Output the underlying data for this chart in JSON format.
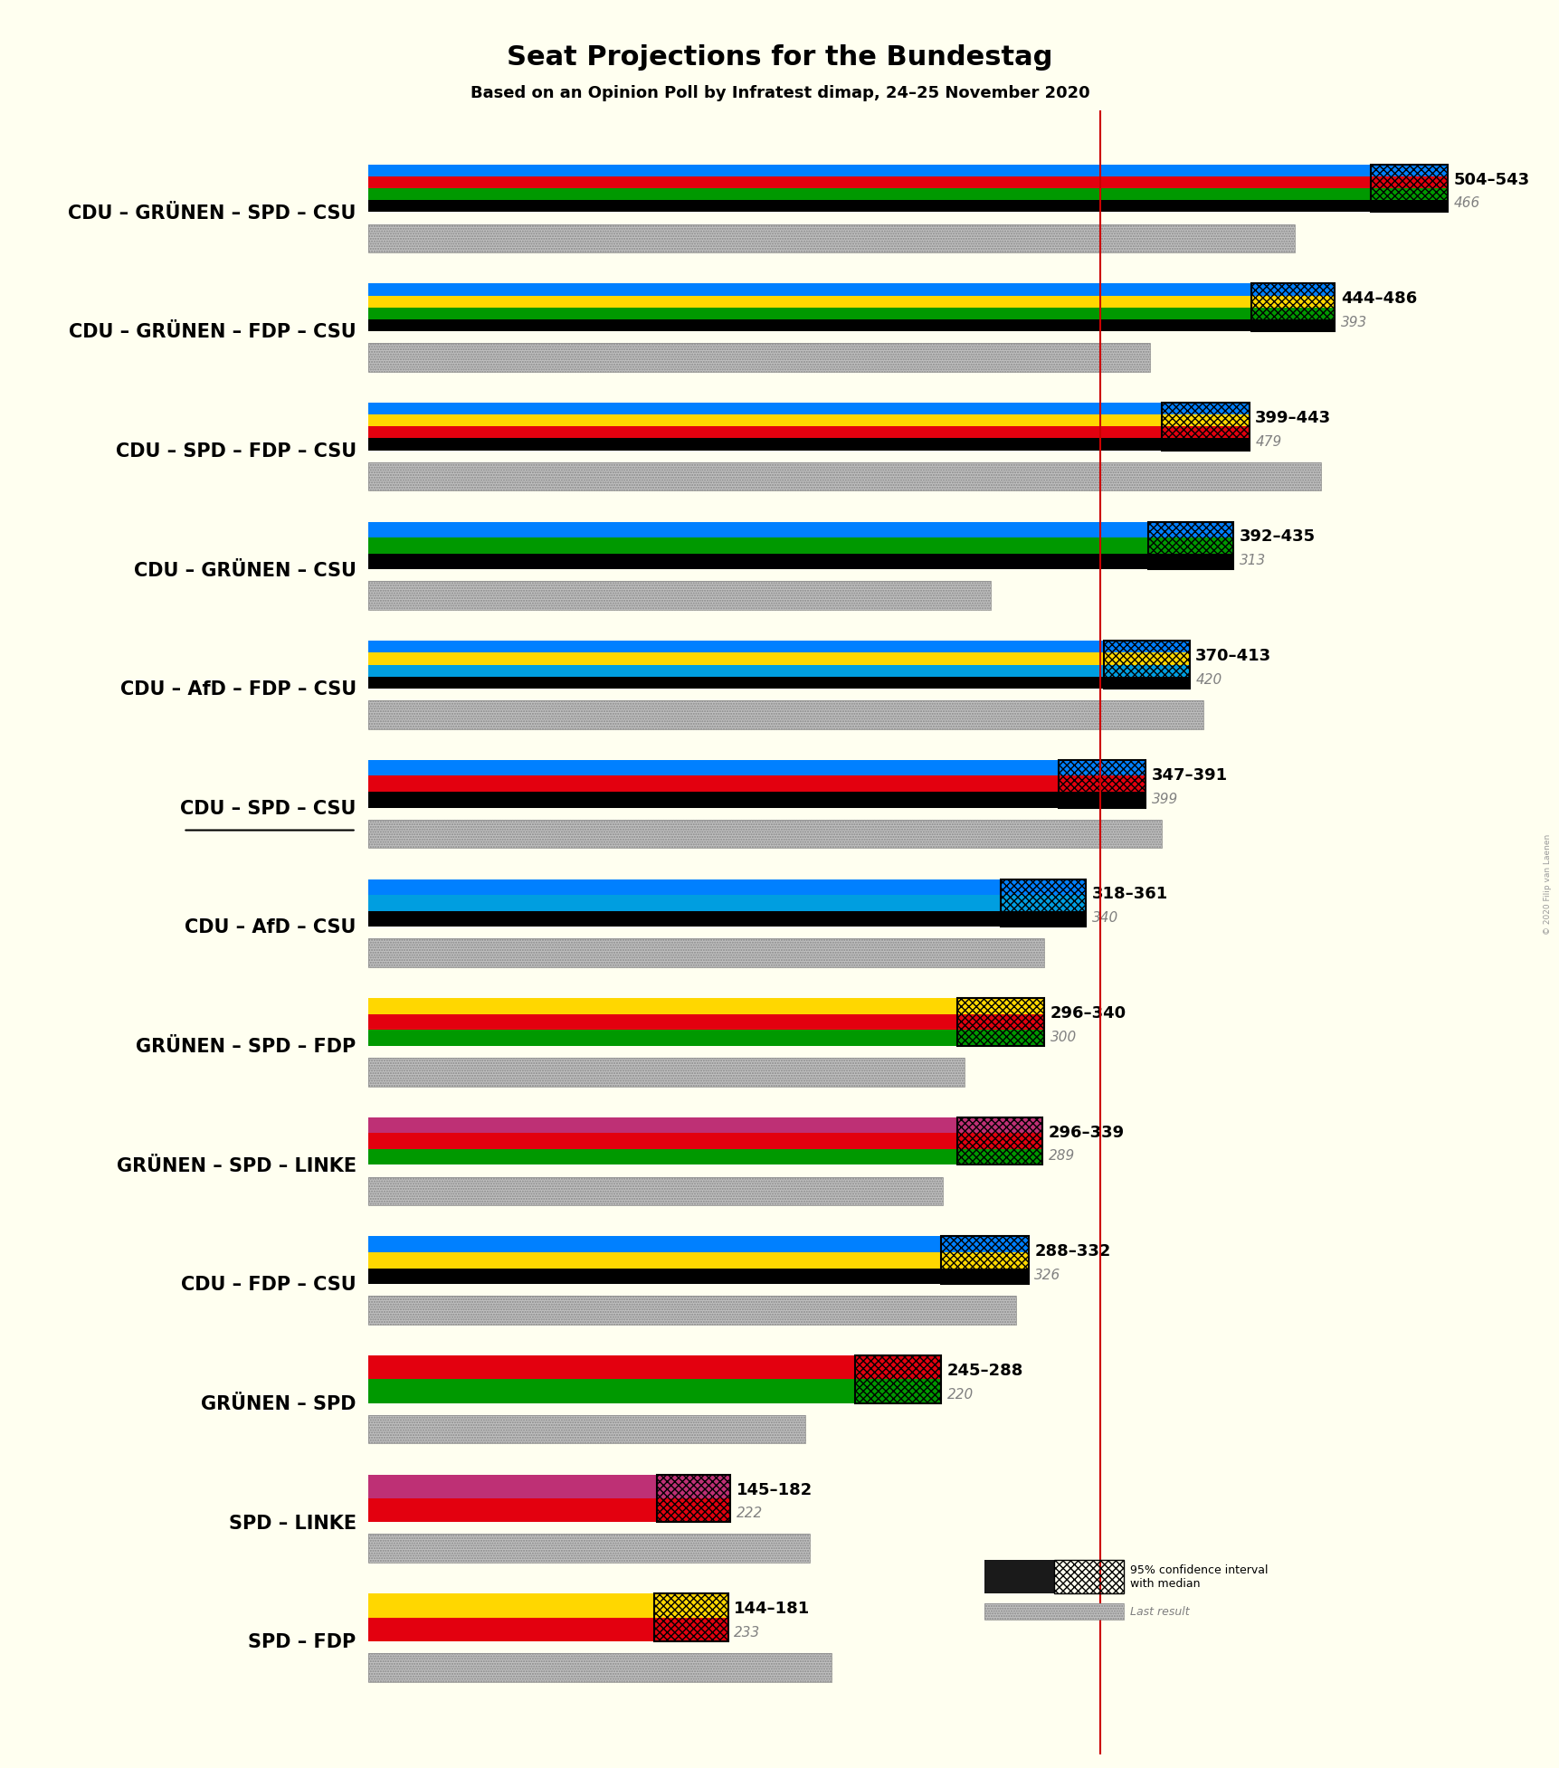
{
  "title": "Seat Projections for the Bundestag",
  "subtitle": "Based on an Opinion Poll by Infratest dimap, 24–25 November 2020",
  "background_color": "#FFFFF0",
  "watermark": "© 2020 Filip van Laenen",
  "majority_line": 368,
  "coalitions": [
    {
      "name": "CDU – GRÜNEN – SPD – CSU",
      "underline": false,
      "ci_low": 504,
      "ci_high": 543,
      "median": 466,
      "colors": [
        "#000000",
        "#009900",
        "#E3000F",
        "#0080FF"
      ]
    },
    {
      "name": "CDU – GRÜNEN – FDP – CSU",
      "underline": false,
      "ci_low": 444,
      "ci_high": 486,
      "median": 393,
      "colors": [
        "#000000",
        "#009900",
        "#FFD700",
        "#0080FF"
      ]
    },
    {
      "name": "CDU – SPD – FDP – CSU",
      "underline": false,
      "ci_low": 399,
      "ci_high": 443,
      "median": 479,
      "colors": [
        "#000000",
        "#E3000F",
        "#FFD700",
        "#0080FF"
      ]
    },
    {
      "name": "CDU – GRÜNEN – CSU",
      "underline": false,
      "ci_low": 392,
      "ci_high": 435,
      "median": 313,
      "colors": [
        "#000000",
        "#009900",
        "#0080FF"
      ]
    },
    {
      "name": "CDU – AfD – FDP – CSU",
      "underline": false,
      "ci_low": 370,
      "ci_high": 413,
      "median": 420,
      "colors": [
        "#000000",
        "#009EE0",
        "#FFD700",
        "#0080FF"
      ]
    },
    {
      "name": "CDU – SPD – CSU",
      "underline": true,
      "ci_low": 347,
      "ci_high": 391,
      "median": 399,
      "colors": [
        "#000000",
        "#E3000F",
        "#0080FF"
      ]
    },
    {
      "name": "CDU – AfD – CSU",
      "underline": false,
      "ci_low": 318,
      "ci_high": 361,
      "median": 340,
      "colors": [
        "#000000",
        "#009EE0",
        "#0080FF"
      ]
    },
    {
      "name": "GRÜNEN – SPD – FDP",
      "underline": false,
      "ci_low": 296,
      "ci_high": 340,
      "median": 300,
      "colors": [
        "#009900",
        "#E3000F",
        "#FFD700"
      ]
    },
    {
      "name": "GRÜNEN – SPD – LINKE",
      "underline": false,
      "ci_low": 296,
      "ci_high": 339,
      "median": 289,
      "colors": [
        "#009900",
        "#E3000F",
        "#BE3075"
      ]
    },
    {
      "name": "CDU – FDP – CSU",
      "underline": false,
      "ci_low": 288,
      "ci_high": 332,
      "median": 326,
      "colors": [
        "#000000",
        "#FFD700",
        "#0080FF"
      ]
    },
    {
      "name": "GRÜNEN – SPD",
      "underline": false,
      "ci_low": 245,
      "ci_high": 288,
      "median": 220,
      "colors": [
        "#009900",
        "#E3000F"
      ]
    },
    {
      "name": "SPD – LINKE",
      "underline": false,
      "ci_low": 145,
      "ci_high": 182,
      "median": 222,
      "colors": [
        "#E3000F",
        "#BE3075"
      ]
    },
    {
      "name": "SPD – FDP",
      "underline": false,
      "ci_low": 144,
      "ci_high": 181,
      "median": 233,
      "colors": [
        "#E3000F",
        "#FFD700"
      ]
    }
  ],
  "title_fontsize": 22,
  "subtitle_fontsize": 13,
  "label_fontsize": 13,
  "range_fontsize": 13,
  "median_fontsize": 11,
  "coalition_fontsize": 15
}
